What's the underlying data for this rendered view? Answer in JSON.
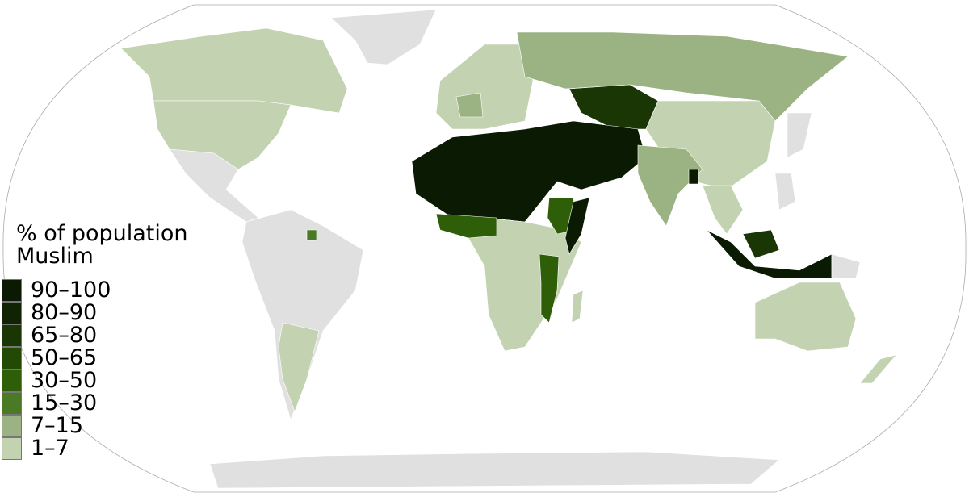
{
  "legend": {
    "title_line1": "% of population",
    "title_line2": "Muslim",
    "items": [
      {
        "label": "90–100",
        "color": "#0b1a02"
      },
      {
        "label": "80–90",
        "color": "#102404"
      },
      {
        "label": "65–80",
        "color": "#1a3605"
      },
      {
        "label": "50–65",
        "color": "#234a05"
      },
      {
        "label": "30–50",
        "color": "#2f5e08"
      },
      {
        "label": "15–30",
        "color": "#4a7a26"
      },
      {
        "label": "7–15",
        "color": "#9bb282"
      },
      {
        "label": "1–7",
        "color": "#c3d3b2"
      }
    ]
  },
  "colors": {
    "no_data": "#e0e0e0",
    "border": "#ffffff",
    "frame": "#aaaaaa"
  }
}
